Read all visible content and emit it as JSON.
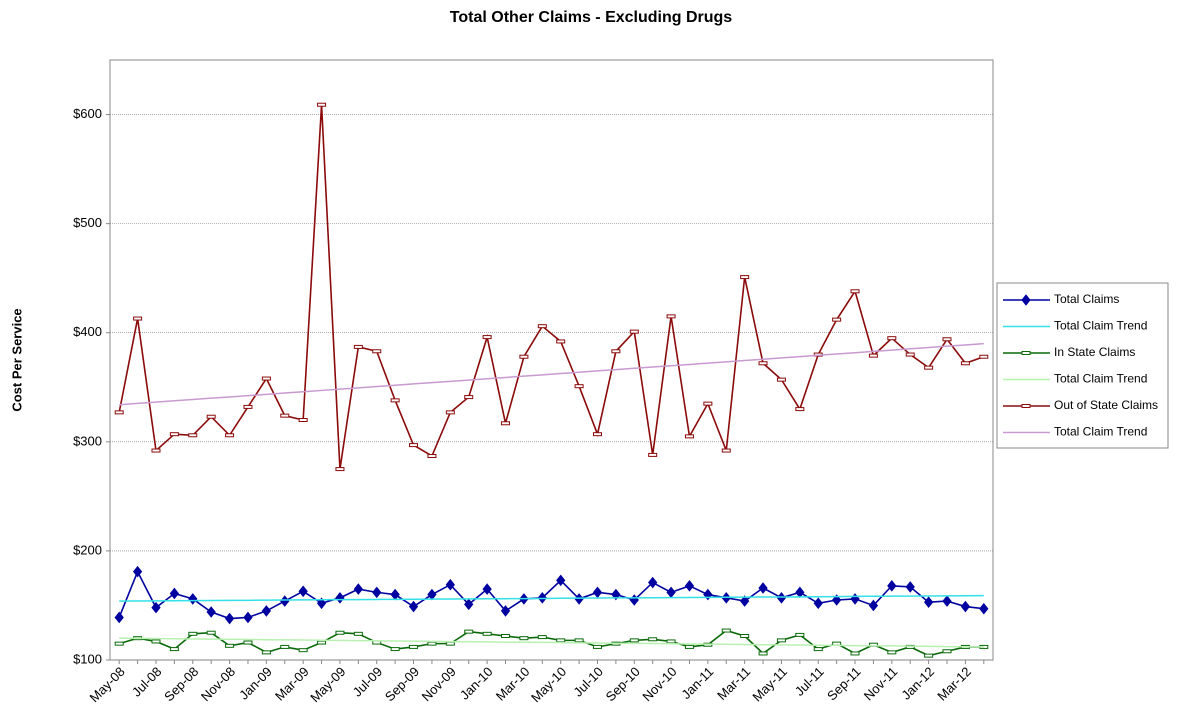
{
  "chart_data": {
    "type": "line",
    "title": "Total Other Claims - Excluding Drugs",
    "y_label": "Cost Per Service",
    "categories": [
      "May-08",
      null,
      "Jul-08",
      null,
      "Sep-08",
      null,
      "Nov-08",
      null,
      "Jan-09",
      null,
      "Mar-09",
      null,
      "May-09",
      null,
      "Jul-09",
      null,
      "Sep-09",
      null,
      "Nov-09",
      null,
      "Jan-10",
      null,
      "Mar-10",
      null,
      "May-10",
      null,
      "Jul-10",
      null,
      "Sep-10",
      null,
      "Nov-10",
      null,
      "Jan-11",
      null,
      "Mar-11",
      null,
      "May-11",
      null,
      "Jul-11",
      null,
      "Sep-11",
      null,
      "Nov-11",
      null,
      "Jan-12",
      null,
      "Mar-12",
      null
    ],
    "ylim": [
      100,
      650
    ],
    "yticks": [
      {
        "value": 100,
        "label": "$100"
      },
      {
        "value": 200,
        "label": "$200"
      },
      {
        "value": 300,
        "label": "$300"
      },
      {
        "value": 400,
        "label": "$400"
      },
      {
        "value": 500,
        "label": "$500"
      },
      {
        "value": 600,
        "label": "$600"
      }
    ],
    "grid": true,
    "legend": "right",
    "series": [
      {
        "name": "Total Claims",
        "color": "#0000a0",
        "marker": "diamond",
        "values": [
          139,
          181,
          148,
          161,
          156,
          144,
          138,
          139,
          145,
          154,
          163,
          152,
          157,
          165,
          162,
          160,
          149,
          160,
          169,
          151,
          165,
          145,
          156,
          157,
          173,
          156,
          162,
          160,
          155,
          171,
          162,
          168,
          160,
          157,
          154,
          166,
          157,
          162,
          152,
          155,
          156,
          150,
          168,
          167,
          153,
          154,
          149,
          147
        ]
      },
      {
        "name": "Total Claim Trend",
        "color": "#33e0e8",
        "marker": "none",
        "values": [
          154.0,
          154.1,
          154.2,
          154.3,
          154.4,
          154.5,
          154.6,
          154.7,
          154.9,
          155.0,
          155.1,
          155.2,
          155.3,
          155.4,
          155.5,
          155.6,
          155.7,
          155.8,
          155.9,
          156.0,
          156.1,
          156.2,
          156.3,
          156.4,
          156.6,
          156.7,
          156.8,
          156.9,
          157.0,
          157.1,
          157.2,
          157.3,
          157.4,
          157.5,
          157.6,
          157.7,
          157.8,
          157.9,
          158.0,
          158.1,
          158.3,
          158.4,
          158.5,
          158.6,
          158.7,
          158.8,
          158.9,
          159.0
        ]
      },
      {
        "name": "In State Claims",
        "color": "#0a6a0a",
        "marker": "dash",
        "values": [
          115,
          120,
          117,
          110,
          124,
          125,
          113,
          116,
          107,
          112,
          109,
          116,
          125,
          124,
          116,
          110,
          112,
          115,
          115,
          126,
          124,
          122,
          120,
          121,
          118,
          118,
          112,
          115,
          118,
          119,
          117,
          112,
          114,
          127,
          122,
          106,
          118,
          123,
          110,
          115,
          106,
          114,
          107,
          112,
          104,
          108,
          112,
          112
        ]
      },
      {
        "name": "Total Claim Trend",
        "color": "#b8f0b0",
        "marker": "none",
        "values": [
          120.0,
          119.8,
          119.7,
          119.5,
          119.3,
          119.1,
          119.0,
          118.8,
          118.6,
          118.5,
          118.3,
          118.1,
          118.0,
          117.8,
          117.6,
          117.4,
          117.3,
          117.1,
          116.9,
          116.8,
          116.6,
          116.4,
          116.3,
          116.1,
          115.9,
          115.7,
          115.6,
          115.4,
          115.2,
          115.1,
          114.9,
          114.7,
          114.6,
          114.4,
          114.2,
          114.0,
          113.9,
          113.7,
          113.5,
          113.4,
          113.2,
          113.0,
          112.9,
          112.7,
          112.5,
          112.3,
          112.2,
          112.0
        ]
      },
      {
        "name": "Out of State Claims",
        "color": "#8b0a0a",
        "marker": "dash",
        "values": [
          327,
          413,
          292,
          307,
          306,
          323,
          306,
          332,
          358,
          324,
          320,
          609,
          275,
          387,
          383,
          338,
          297,
          287,
          327,
          341,
          396,
          317,
          378,
          406,
          392,
          351,
          307,
          383,
          401,
          288,
          415,
          305,
          335,
          292,
          451,
          372,
          357,
          330,
          380,
          412,
          438,
          379,
          395,
          380,
          368,
          394,
          372,
          378
        ]
      },
      {
        "name": "Total Claim Trend",
        "color": "#c89ad0",
        "marker": "none",
        "values": [
          334.0,
          335.2,
          336.4,
          337.6,
          338.8,
          340.0,
          341.1,
          342.3,
          343.5,
          344.7,
          345.9,
          347.1,
          348.3,
          349.5,
          350.7,
          351.9,
          353.1,
          354.3,
          355.4,
          356.6,
          357.8,
          359.0,
          360.2,
          361.4,
          362.6,
          363.8,
          365.0,
          366.2,
          367.4,
          368.6,
          369.7,
          370.9,
          372.1,
          373.3,
          374.5,
          375.7,
          376.9,
          378.1,
          379.3,
          380.5,
          381.7,
          382.9,
          384.1,
          385.3,
          386.5,
          387.7,
          388.8,
          390.0
        ]
      }
    ]
  }
}
